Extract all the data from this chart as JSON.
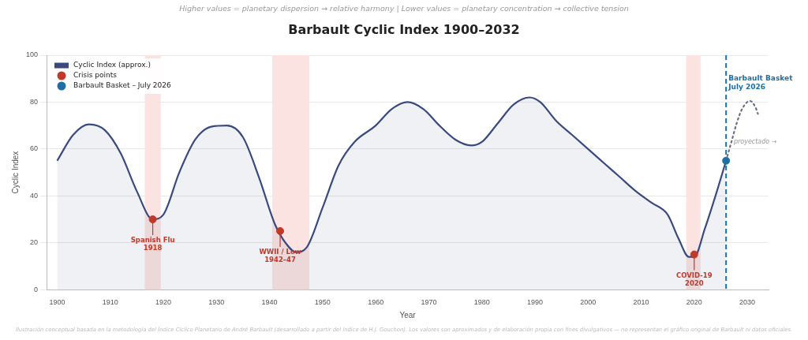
{
  "chart_data": {
    "type": "line",
    "title": "Barbault Cyclic Index  1900–2032",
    "subtitle": "Higher values = planetary dispersion → relative harmony   |   Lower values = planetary concentration → collective tension",
    "xlabel": "Year",
    "ylabel": "Cyclic Index",
    "series": [
      {
        "name": "Cyclic Index (approx.)",
        "type": "area",
        "color": "#3b4a7e",
        "x": [
          1900,
          1903,
          1906,
          1909,
          1912,
          1915,
          1918,
          1920,
          1923,
          1926,
          1929,
          1932,
          1935,
          1938,
          1941,
          1943,
          1945,
          1947,
          1950,
          1953,
          1956,
          1960,
          1963,
          1966,
          1969,
          1972,
          1975,
          1978,
          1980,
          1983,
          1986,
          1989,
          1991,
          1994,
          1997,
          2000,
          2003,
          2006,
          2009,
          2012,
          2015,
          2017,
          2019,
          2020,
          2022,
          2024,
          2026
        ],
        "values": [
          55,
          66,
          70.5,
          68,
          58,
          42,
          30,
          32,
          50,
          64,
          69.5,
          70,
          65,
          48,
          28,
          20,
          16,
          18,
          35,
          53,
          63,
          70,
          77,
          80,
          77,
          70,
          64,
          61.5,
          63,
          71,
          79,
          82,
          80,
          72,
          66,
          60,
          54,
          48,
          42,
          37,
          32,
          22,
          14,
          14,
          26,
          40,
          55
        ]
      },
      {
        "type": "line",
        "line_style": "dotted",
        "color": "#6b7088",
        "x": [
          2026,
          2027,
          2028,
          2029,
          2030.5,
          2031.5,
          2032
        ],
        "values": [
          55,
          63,
          71,
          77,
          80.5,
          78,
          75
        ]
      },
      {
        "name": "Crisis points",
        "type": "scatter",
        "marker": "circle",
        "color": "#c0392b",
        "x": [
          1918,
          1942,
          2020
        ],
        "values": [
          30,
          25,
          15
        ]
      },
      {
        "name": "Barbault Basket – July 2026",
        "type": "scatter",
        "marker": "circle",
        "color": "#1f6fa6",
        "x": [
          2026
        ],
        "values": [
          55
        ]
      }
    ],
    "xlim": [
      1898,
      2034
    ],
    "xticks": [
      1900,
      1910,
      1920,
      1930,
      1940,
      1950,
      1960,
      1970,
      1980,
      1990,
      2000,
      2010,
      2020,
      2030
    ],
    "ylim": [
      0,
      100
    ],
    "yticks": [
      0,
      20,
      40,
      60,
      80,
      100
    ],
    "grid": "y",
    "legend": "top left",
    "bands": [
      {
        "axis": "x",
        "from": 1916.5,
        "to": 1919.5,
        "color": "#fbe3e1"
      },
      {
        "axis": "x",
        "from": 1940.5,
        "to": 1947.5,
        "color": "#fbe3e1"
      },
      {
        "axis": "x",
        "from": 2018.5,
        "to": 2021.2,
        "color": "#fbe3e1"
      }
    ],
    "ref_lines": [
      {
        "axis": "x",
        "value": 2026,
        "label": "Barbault Basket\nJuly 2026",
        "color": "#1f6fa6",
        "line_style": "dashed"
      }
    ],
    "annotations": [
      {
        "text": "Spanish Flu\n1918",
        "x": 1918,
        "y": 30
      },
      {
        "text": "WWII / Low\n1942–47",
        "x": 1942,
        "y": 25
      },
      {
        "text": "COVID-19\n2020",
        "x": 2020,
        "y": 15
      },
      {
        "text": "proyectado →",
        "x": 2027,
        "y": 63
      },
      "Ilustración conceptual basada en la metodología del Índice Cíclico Planetario de André Barbault (desarrollado a partir del índice de H.J. Gouchon). Los valores son aproximados y de elaboración propia con fines divulgativos — no representan el gráfico original de Barbault ni datos oficiales."
    ]
  }
}
